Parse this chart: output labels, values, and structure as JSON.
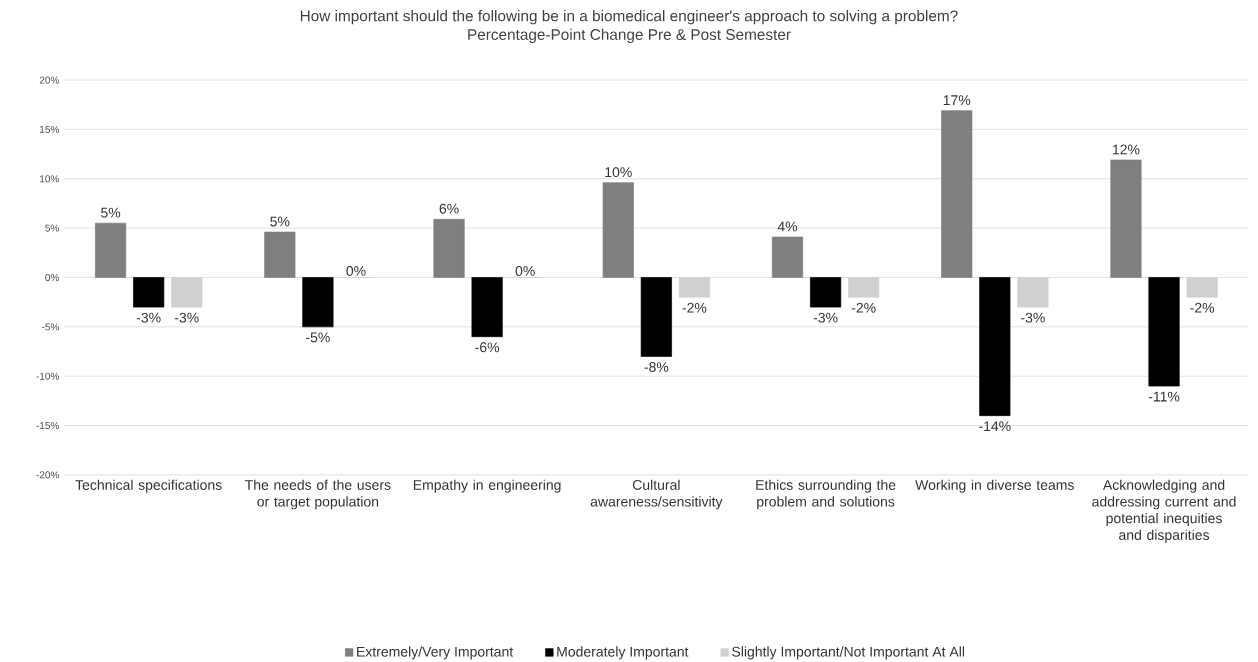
{
  "chart_data": {
    "type": "bar",
    "title": "How important should the following be in a biomedical engineer's approach to solving a problem?",
    "subtitle": "Percentage-Point Change Pre & Post Semester",
    "categories": [
      "Technical specifications",
      "The needs of the users or target population",
      "Empathy in engineering",
      "Cultural awareness/sensitivity",
      "Ethics surrounding the problem and solutions",
      "Working in diverse teams",
      "Acknowledging and addressing current and potential inequities and disparities"
    ],
    "series": [
      {
        "name": "Extremely/Very Important",
        "color": "#7f7f7f",
        "values": [
          5.5,
          4.6,
          5.9,
          9.6,
          4.1,
          16.9,
          11.9
        ],
        "value_labels": [
          "5%",
          "5%",
          "6%",
          "10%",
          "4%",
          "17%",
          "12%"
        ]
      },
      {
        "name": "Moderately Important",
        "color": "#000000",
        "values": [
          -3,
          -5,
          -6,
          -8,
          -3,
          -14,
          -11
        ],
        "value_labels": [
          "-3%",
          "-5%",
          "-6%",
          "-8%",
          "-3%",
          "-14%",
          "-11%"
        ]
      },
      {
        "name": "Slightly Important/Not Important At All",
        "color": "#d0d0d0",
        "values": [
          -3,
          0,
          0,
          -2,
          -2,
          -3,
          -2
        ],
        "value_labels": [
          "-3%",
          "0%",
          "0%",
          "-2%",
          "-2%",
          "-3%",
          "-2%"
        ]
      }
    ],
    "ylim": [
      -20,
      20
    ],
    "yticks": [
      {
        "value": -20,
        "label": "-20%"
      },
      {
        "value": -15,
        "label": "-15%"
      },
      {
        "value": -10,
        "label": "-10%"
      },
      {
        "value": -5,
        "label": "-5%"
      },
      {
        "value": 0,
        "label": "0%"
      },
      {
        "value": 5,
        "label": "5%"
      },
      {
        "value": 10,
        "label": "10%"
      },
      {
        "value": 15,
        "label": "15%"
      },
      {
        "value": 20,
        "label": "20%"
      }
    ],
    "grid": "y",
    "legend": "bottom"
  }
}
